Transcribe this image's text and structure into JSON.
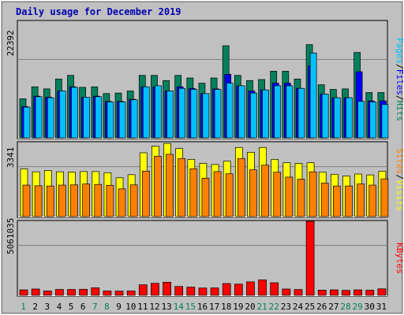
{
  "title": "Daily usage for December 2019",
  "colors": {
    "background": "#c0c0c0",
    "panel": "#c0c0c0",
    "hits": "#00805c",
    "files": "#0000ff",
    "pages": "#00c0ff",
    "visits": "#ffff00",
    "sites": "#ff8000",
    "kbytes": "#ff0000",
    "weekend_label": "#00805c",
    "weekday_label": "#000000"
  },
  "chart_data": [
    {
      "type": "bar",
      "name": "requests",
      "right_label": [
        "Hits",
        "Files",
        "Pages"
      ],
      "right_label_separator": "/",
      "ymax_label": "22392",
      "ylim": [
        0,
        22392
      ],
      "categories": [
        "1",
        "2",
        "3",
        "4",
        "5",
        "6",
        "7",
        "8",
        "9",
        "10",
        "11",
        "12",
        "13",
        "14",
        "15",
        "16",
        "17",
        "18",
        "19",
        "20",
        "21",
        "22",
        "23",
        "24",
        "25",
        "26",
        "27",
        "28",
        "29",
        "30",
        "31"
      ],
      "series": [
        {
          "name": "Hits",
          "values": [
            7500,
            9800,
            9400,
            11300,
            12000,
            9700,
            9800,
            8500,
            8600,
            9000,
            12000,
            12000,
            11000,
            12000,
            11500,
            10500,
            11500,
            17700,
            12000,
            11000,
            11200,
            12800,
            12800,
            11300,
            17900,
            10200,
            9300,
            9400,
            16400,
            8700,
            8700
          ]
        },
        {
          "name": "Files",
          "values": [
            6000,
            8000,
            7800,
            9000,
            9800,
            7800,
            8000,
            7000,
            7000,
            7400,
            9800,
            9800,
            9000,
            9800,
            9500,
            8500,
            9400,
            12200,
            10000,
            9000,
            9200,
            10500,
            10500,
            9500,
            13800,
            8400,
            7700,
            7700,
            12700,
            7100,
            7100
          ]
        },
        {
          "name": "Pages",
          "values": [
            5900,
            7900,
            7700,
            9000,
            9700,
            7800,
            7900,
            6900,
            6900,
            7300,
            9800,
            10000,
            9000,
            9500,
            9300,
            8500,
            9300,
            10500,
            10000,
            8600,
            9200,
            10000,
            10000,
            9500,
            16300,
            8400,
            7700,
            7700,
            7000,
            6900,
            6400
          ]
        }
      ]
    },
    {
      "type": "bar",
      "name": "visitors",
      "right_label": [
        "Visits",
        "Sites"
      ],
      "right_label_separator": "/",
      "ymax_label": "3341",
      "ylim": [
        0,
        3341
      ],
      "categories": [
        "1",
        "2",
        "3",
        "4",
        "5",
        "6",
        "7",
        "8",
        "9",
        "10",
        "11",
        "12",
        "13",
        "14",
        "15",
        "16",
        "17",
        "18",
        "19",
        "20",
        "21",
        "22",
        "23",
        "24",
        "25",
        "26",
        "27",
        "28",
        "29",
        "30",
        "31"
      ],
      "series": [
        {
          "name": "Visits",
          "values": [
            2150,
            2020,
            2080,
            2020,
            2010,
            2030,
            2030,
            1980,
            1750,
            1890,
            2880,
            3180,
            3300,
            3070,
            2580,
            2400,
            2350,
            2500,
            3120,
            2900,
            3120,
            2580,
            2430,
            2400,
            2430,
            2000,
            1910,
            1830,
            1920,
            1880,
            2050
          ]
        },
        {
          "name": "Sites",
          "values": [
            1420,
            1390,
            1380,
            1420,
            1430,
            1470,
            1450,
            1410,
            1250,
            1430,
            2050,
            2720,
            2810,
            2620,
            2160,
            1730,
            2030,
            1930,
            2620,
            2110,
            2320,
            2000,
            1780,
            1690,
            2020,
            1510,
            1380,
            1380,
            1470,
            1420,
            1700
          ]
        }
      ]
    },
    {
      "type": "bar",
      "name": "kbytes",
      "right_label": [
        "KBytes"
      ],
      "right_label_separator": "",
      "ymax_label": "5061035",
      "ylim": [
        0,
        5061035
      ],
      "categories": [
        "1",
        "2",
        "3",
        "4",
        "5",
        "6",
        "7",
        "8",
        "9",
        "10",
        "11",
        "12",
        "13",
        "14",
        "15",
        "16",
        "17",
        "18",
        "19",
        "20",
        "21",
        "22",
        "23",
        "24",
        "25",
        "26",
        "27",
        "28",
        "29",
        "30",
        "31"
      ],
      "series": [
        {
          "name": "KBytes",
          "values": [
            650,
            750,
            520,
            700,
            700,
            720,
            900,
            520,
            500,
            520,
            1250,
            1430,
            1560,
            1050,
            980,
            870,
            880,
            1400,
            1330,
            1600,
            1840,
            1490,
            750,
            690,
            8800,
            620,
            650,
            590,
            650,
            610,
            770
          ]
        }
      ],
      "value_scale_note_free": true
    }
  ],
  "x_labels": [
    "1",
    "2",
    "3",
    "4",
    "5",
    "6",
    "7",
    "8",
    "9",
    "10",
    "11",
    "12",
    "13",
    "14",
    "15",
    "16",
    "17",
    "18",
    "19",
    "20",
    "21",
    "22",
    "23",
    "24",
    "25",
    "26",
    "27",
    "28",
    "29",
    "30",
    "31"
  ],
  "weekend_days": [
    1,
    7,
    8,
    14,
    15,
    21,
    22,
    28,
    29
  ]
}
